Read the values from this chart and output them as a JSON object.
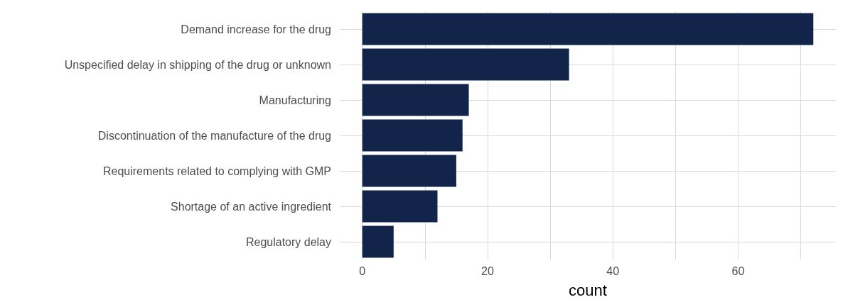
{
  "chart_data": {
    "type": "bar",
    "orientation": "horizontal",
    "xlabel": "count",
    "categories": [
      "Demand increase for the drug",
      "Unspecified delay in shipping of the drug or unknown",
      "Manufacturing",
      "Discontinuation of the manufacture of the drug",
      "Requirements related to complying with GMP",
      "Shortage of an active ingredient",
      "Regulatory delay"
    ],
    "values": [
      72,
      33,
      17,
      16,
      15,
      12,
      5
    ],
    "color": "#13244a",
    "xlim": [
      -3.6,
      75.6
    ],
    "xticks": [
      0,
      {
        "value": 10,
        "label": null
      },
      20,
      {
        "value": 30,
        "label": null
      },
      40,
      {
        "value": 50,
        "label": null
      },
      60,
      {
        "value": 70,
        "label": null
      }
    ],
    "grid": true
  }
}
